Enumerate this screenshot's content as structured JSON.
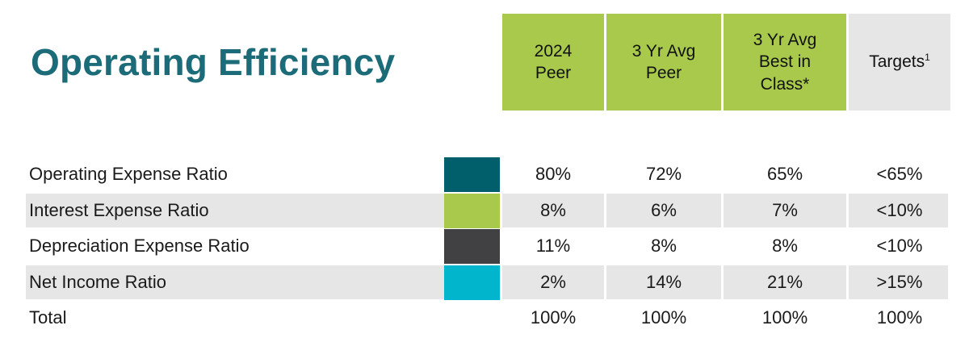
{
  "title": "Operating Efficiency",
  "columns": [
    {
      "lines": [
        "2024",
        "Peer"
      ],
      "style": "green"
    },
    {
      "lines": [
        "3 Yr Avg",
        "Peer"
      ],
      "style": "green"
    },
    {
      "lines": [
        "3 Yr Avg",
        "Best in",
        "Class*"
      ],
      "style": "green"
    },
    {
      "lines": [
        "Targets"
      ],
      "sup": "1",
      "style": "grey"
    }
  ],
  "rows": [
    {
      "label": "Operating Expense Ratio",
      "color": "#005f6b",
      "shaded": false,
      "values": [
        "80%",
        "72%",
        "65%",
        "<65%"
      ]
    },
    {
      "label": "Interest Expense Ratio",
      "color": "#a8c94b",
      "shaded": true,
      "values": [
        "8%",
        "6%",
        "7%",
        "<10%"
      ]
    },
    {
      "label": "Depreciation Expense Ratio",
      "color": "#414042",
      "shaded": false,
      "values": [
        "11%",
        "8%",
        "8%",
        "<10%"
      ]
    },
    {
      "label": "Net Income Ratio",
      "color": "#00b5cc",
      "shaded": true,
      "values": [
        "2%",
        "14%",
        "21%",
        ">15%"
      ]
    }
  ],
  "total": {
    "label": "Total",
    "values": [
      "100%",
      "100%",
      "100%",
      "100%"
    ]
  }
}
